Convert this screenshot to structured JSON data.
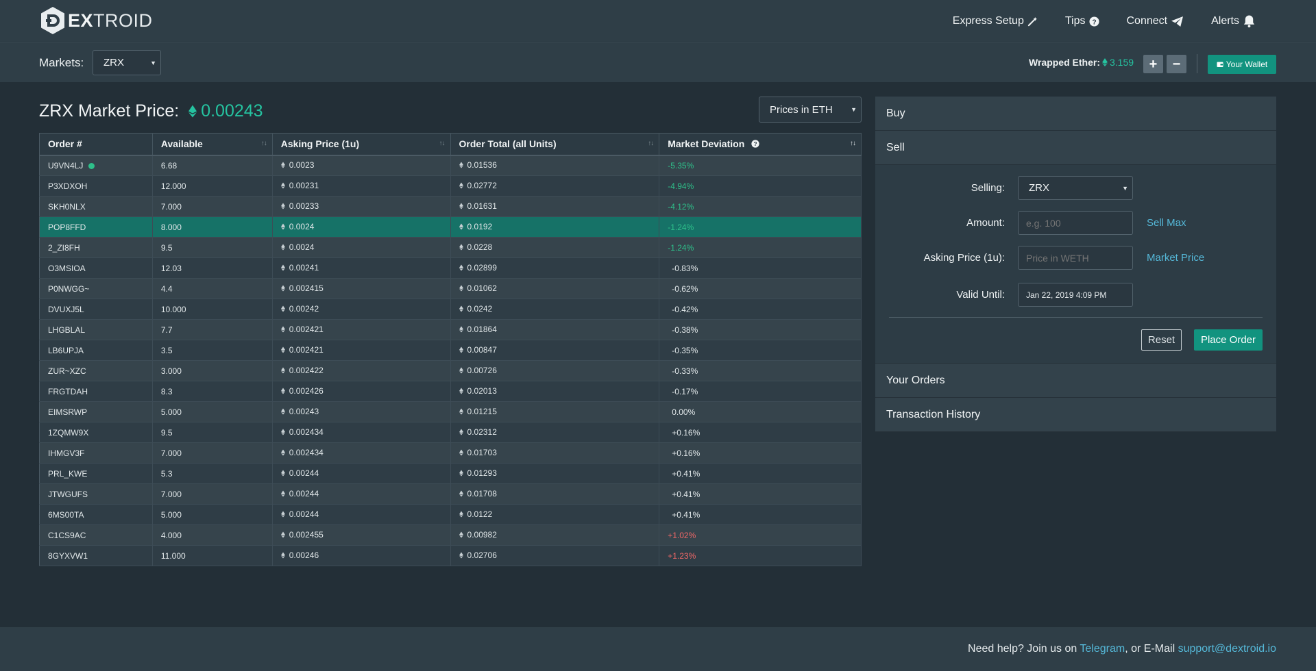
{
  "brand": {
    "logo_bold": "EX",
    "logo_rest": "TROID"
  },
  "nav": {
    "express_setup": "Express Setup",
    "tips": "Tips",
    "connect": "Connect",
    "alerts": "Alerts"
  },
  "marketbar": {
    "markets_label": "Markets:",
    "market_selected": "ZRX",
    "weth_label": "Wrapped Ether:",
    "weth_value": "3.159",
    "plus": "+",
    "minus": "−",
    "wallet": "Your Wallet"
  },
  "main": {
    "title": "ZRX Market Price:",
    "price": "0.00243",
    "prices_select": "Prices in ETH"
  },
  "table": {
    "headers": [
      "Order #",
      "Available",
      "Asking Price (1u)",
      "Order Total (all Units)",
      "Market Deviation"
    ],
    "rows": [
      {
        "id": "U9VN4LJ",
        "available": "6.68",
        "ask": "0.0023",
        "total": "0.01536",
        "dev": "-5.35%",
        "dot": true
      },
      {
        "id": "P3XDXOH",
        "available": "12.000",
        "ask": "0.00231",
        "total": "0.02772",
        "dev": "-4.94%"
      },
      {
        "id": "SKH0NLX",
        "available": "7.000",
        "ask": "0.00233",
        "total": "0.01631",
        "dev": "-4.12%"
      },
      {
        "id": "POP8FFD",
        "available": "8.000",
        "ask": "0.0024",
        "total": "0.0192",
        "dev": "-1.24%",
        "selected": true
      },
      {
        "id": "2_ZI8FH",
        "available": "9.5",
        "ask": "0.0024",
        "total": "0.0228",
        "dev": "-1.24%"
      },
      {
        "id": "O3MSIOA",
        "available": "12.03",
        "ask": "0.00241",
        "total": "0.02899",
        "dev": "-0.83%"
      },
      {
        "id": "P0NWGG~",
        "available": "4.4",
        "ask": "0.002415",
        "total": "0.01062",
        "dev": "-0.62%"
      },
      {
        "id": "DVUXJ5L",
        "available": "10.000",
        "ask": "0.00242",
        "total": "0.0242",
        "dev": "-0.42%"
      },
      {
        "id": "LHGBLAL",
        "available": "7.7",
        "ask": "0.002421",
        "total": "0.01864",
        "dev": "-0.38%"
      },
      {
        "id": "LB6UPJA",
        "available": "3.5",
        "ask": "0.002421",
        "total": "0.00847",
        "dev": "-0.35%"
      },
      {
        "id": "ZUR~XZC",
        "available": "3.000",
        "ask": "0.002422",
        "total": "0.00726",
        "dev": "-0.33%"
      },
      {
        "id": "FRGTDAH",
        "available": "8.3",
        "ask": "0.002426",
        "total": "0.02013",
        "dev": "-0.17%"
      },
      {
        "id": "EIMSRWP",
        "available": "5.000",
        "ask": "0.00243",
        "total": "0.01215",
        "dev": "0.00%"
      },
      {
        "id": "1ZQMW9X",
        "available": "9.5",
        "ask": "0.002434",
        "total": "0.02312",
        "dev": "+0.16%"
      },
      {
        "id": "IHMGV3F",
        "available": "7.000",
        "ask": "0.002434",
        "total": "0.01703",
        "dev": "+0.16%"
      },
      {
        "id": "PRL_KWE",
        "available": "5.3",
        "ask": "0.00244",
        "total": "0.01293",
        "dev": "+0.41%"
      },
      {
        "id": "JTWGUFS",
        "available": "7.000",
        "ask": "0.00244",
        "total": "0.01708",
        "dev": "+0.41%"
      },
      {
        "id": "6MS00TA",
        "available": "5.000",
        "ask": "0.00244",
        "total": "0.0122",
        "dev": "+0.41%"
      },
      {
        "id": "C1CS9AC",
        "available": "4.000",
        "ask": "0.002455",
        "total": "0.00982",
        "dev": "+1.02%"
      },
      {
        "id": "8GYXVW1",
        "available": "11.000",
        "ask": "0.00246",
        "total": "0.02706",
        "dev": "+1.23%"
      }
    ]
  },
  "panel": {
    "buy": "Buy",
    "sell": "Sell",
    "selling_label": "Selling:",
    "selling_value": "ZRX",
    "amount_label": "Amount:",
    "amount_placeholder": "e.g. 100",
    "sell_max": "Sell Max",
    "asking_label": "Asking Price (1u):",
    "asking_placeholder": "Price in WETH",
    "market_price": "Market Price",
    "valid_label": "Valid Until:",
    "valid_value": "Jan 22, 2019 4:09 PM",
    "reset": "Reset",
    "place_order": "Place Order",
    "your_orders": "Your Orders",
    "history": "Transaction History"
  },
  "footer": {
    "text1": "Need help? Join us on ",
    "telegram": "Telegram",
    "text2": ", or E-Mail ",
    "email": "support@dextroid.io"
  },
  "colors": {
    "accent": "#25c3a0",
    "button": "#12937f",
    "negative": "#2ec08a",
    "positive": "#f06767",
    "link": "#55b8d8"
  }
}
